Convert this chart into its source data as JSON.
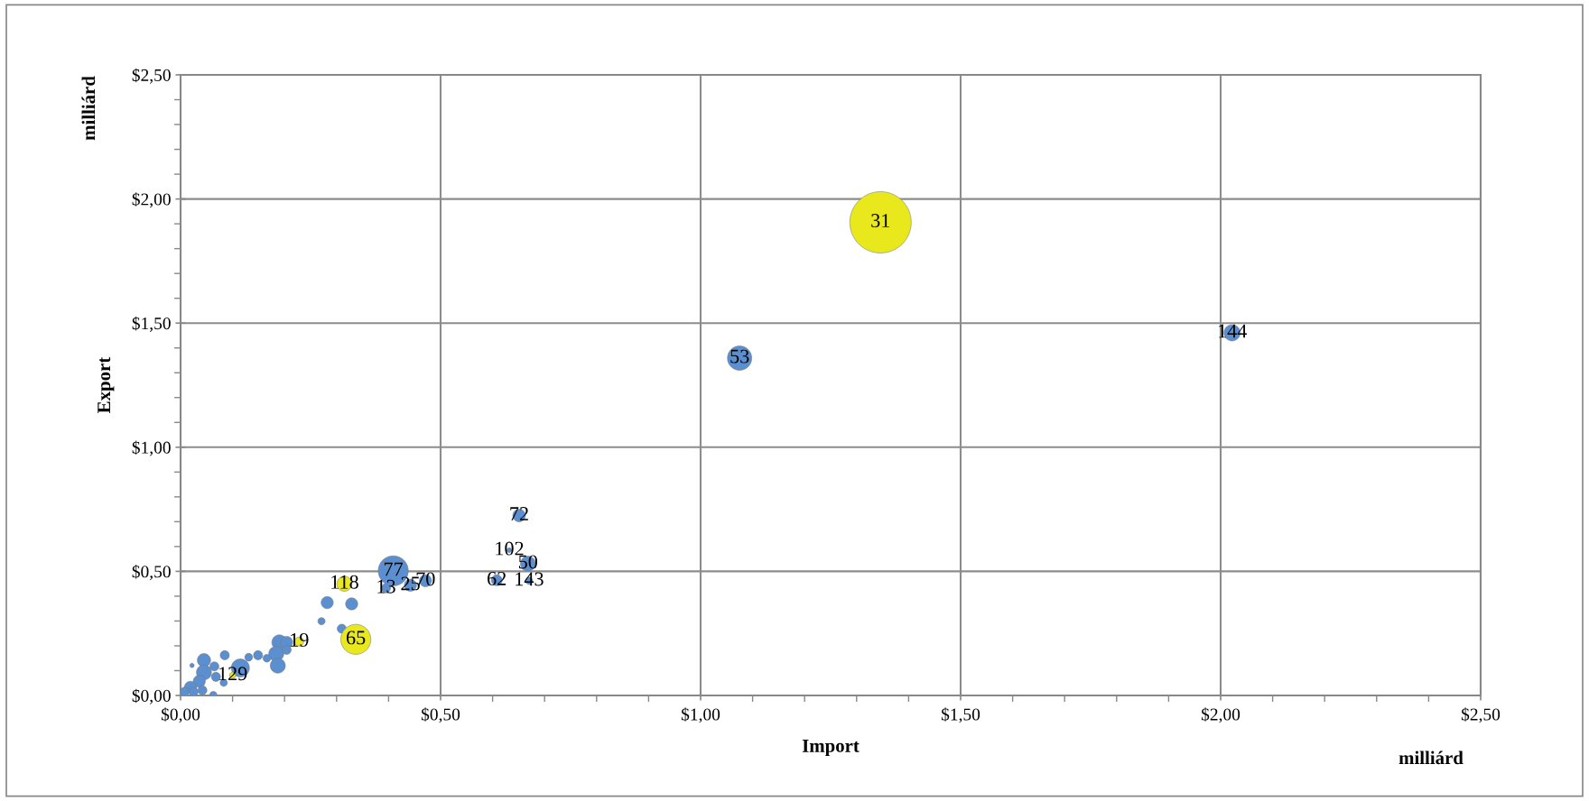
{
  "chart_data": {
    "type": "bubble",
    "xlabel": "Import",
    "ylabel": "Export",
    "annotations": [
      "milliárd",
      "milliárd",
      {
        "text": "31",
        "x": 1.346,
        "y": 1.906
      },
      {
        "text": "144",
        "x": 2.022,
        "y": 1.461
      },
      {
        "text": "53",
        "x": 1.075,
        "y": 1.359
      },
      {
        "text": "72",
        "x": 0.651,
        "y": 0.725
      },
      {
        "text": "102",
        "x": 0.632,
        "y": 0.585
      },
      {
        "text": "50",
        "x": 0.668,
        "y": 0.531
      },
      {
        "text": "62",
        "x": 0.608,
        "y": 0.464
      },
      {
        "text": "143",
        "x": 0.67,
        "y": 0.462
      },
      {
        "text": "77",
        "x": 0.409,
        "y": 0.502
      },
      {
        "text": "70",
        "x": 0.471,
        "y": 0.462
      },
      {
        "text": "25",
        "x": 0.442,
        "y": 0.444
      },
      {
        "text": "13",
        "x": 0.395,
        "y": 0.432
      },
      {
        "text": "118",
        "x": 0.315,
        "y": 0.45
      },
      {
        "text": "65",
        "x": 0.337,
        "y": 0.226
      },
      {
        "text": "19",
        "x": 0.228,
        "y": 0.217
      },
      {
        "text": "129",
        "x": 0.1,
        "y": 0.081
      }
    ],
    "xlim": [
      0,
      2.5
    ],
    "ylim": [
      0,
      2.5
    ],
    "xticks": [
      {
        "value": 0,
        "label": "$0,00"
      },
      {
        "value": 0.1,
        "label": null
      },
      {
        "value": 0.2,
        "label": null
      },
      {
        "value": 0.3,
        "label": null
      },
      {
        "value": 0.4,
        "label": null
      },
      {
        "value": 0.5,
        "label": "$0,50"
      },
      {
        "value": 0.6,
        "label": null
      },
      {
        "value": 0.7,
        "label": null
      },
      {
        "value": 0.8,
        "label": null
      },
      {
        "value": 0.9,
        "label": null
      },
      {
        "value": 1.0,
        "label": "$1,00"
      },
      {
        "value": 1.1,
        "label": null
      },
      {
        "value": 1.2,
        "label": null
      },
      {
        "value": 1.3,
        "label": null
      },
      {
        "value": 1.4,
        "label": null
      },
      {
        "value": 1.5,
        "label": "$1,50"
      },
      {
        "value": 1.6,
        "label": null
      },
      {
        "value": 1.7,
        "label": null
      },
      {
        "value": 1.8,
        "label": null
      },
      {
        "value": 1.9,
        "label": null
      },
      {
        "value": 2.0,
        "label": "$2,00"
      },
      {
        "value": 2.1,
        "label": null
      },
      {
        "value": 2.2,
        "label": null
      },
      {
        "value": 2.3,
        "label": null
      },
      {
        "value": 2.4,
        "label": null
      },
      {
        "value": 2.5,
        "label": "$2,50"
      }
    ],
    "yticks": [
      {
        "value": 0,
        "label": "$0,00"
      },
      {
        "value": 0.1,
        "label": null
      },
      {
        "value": 0.2,
        "label": null
      },
      {
        "value": 0.3,
        "label": null
      },
      {
        "value": 0.4,
        "label": null
      },
      {
        "value": 0.5,
        "label": "$0,50"
      },
      {
        "value": 0.6,
        "label": null
      },
      {
        "value": 0.7,
        "label": null
      },
      {
        "value": 0.8,
        "label": null
      },
      {
        "value": 0.9,
        "label": null
      },
      {
        "value": 1.0,
        "label": "$1,00"
      },
      {
        "value": 1.1,
        "label": null
      },
      {
        "value": 1.2,
        "label": null
      },
      {
        "value": 1.3,
        "label": null
      },
      {
        "value": 1.4,
        "label": null
      },
      {
        "value": 1.5,
        "label": "$1,50"
      },
      {
        "value": 1.6,
        "label": null
      },
      {
        "value": 1.7,
        "label": null
      },
      {
        "value": 1.8,
        "label": null
      },
      {
        "value": 1.9,
        "label": null
      },
      {
        "value": 2.0,
        "label": "$2,00"
      },
      {
        "value": 2.1,
        "label": null
      },
      {
        "value": 2.2,
        "label": null
      },
      {
        "value": 2.3,
        "label": null
      },
      {
        "value": 2.4,
        "label": null
      },
      {
        "value": 2.5,
        "label": "$2,50"
      }
    ],
    "grid": true,
    "series": [
      {
        "color": "#5b8fcf",
        "x": [
          1.075,
          2.022,
          0.651,
          0.632,
          0.668,
          0.608,
          0.67,
          0.409,
          0.395,
          0.442,
          0.471,
          0.282,
          0.329,
          0.271,
          0.31,
          0.19,
          0.204,
          0.184,
          0.204,
          0.187,
          0.166,
          0.149,
          0.131,
          0.085,
          0.115,
          0.045,
          0.022,
          0.065,
          0.045,
          0.068,
          0.036,
          0.019,
          0.008,
          0.042,
          0.063,
          0.083,
          0.025
        ],
        "values": [
          1.359,
          1.461,
          0.725,
          0.585,
          0.531,
          0.464,
          0.462,
          0.502,
          0.432,
          0.444,
          0.462,
          0.374,
          0.369,
          0.299,
          0.269,
          0.214,
          0.214,
          0.168,
          0.184,
          0.12,
          0.15,
          0.162,
          0.154,
          0.162,
          0.111,
          0.142,
          0.121,
          0.117,
          0.093,
          0.075,
          0.057,
          0.033,
          0.015,
          0.021,
          0.002,
          0.051,
          0.015
        ],
        "sizes": [
          0.157,
          0.07,
          0.042,
          0.006,
          0.06,
          0.031,
          0.014,
          0.24,
          0.022,
          0.039,
          0.039,
          0.039,
          0.039,
          0.014,
          0.022,
          0.06,
          0.039,
          0.06,
          0.022,
          0.06,
          0.016,
          0.022,
          0.016,
          0.022,
          0.087,
          0.047,
          0.005,
          0.022,
          0.06,
          0.022,
          0.039,
          0.039,
          0.022,
          0.022,
          0.014,
          0.014,
          0.022
        ]
      },
      {
        "color": "#e8e81c",
        "x": [
          1.346,
          0.315,
          0.337,
          0.228,
          0.1
        ],
        "values": [
          1.906,
          0.45,
          0.226,
          0.217,
          0.081
        ],
        "sizes": [
          1,
          0.06,
          0.24,
          0.022,
          0.01
        ]
      }
    ]
  }
}
